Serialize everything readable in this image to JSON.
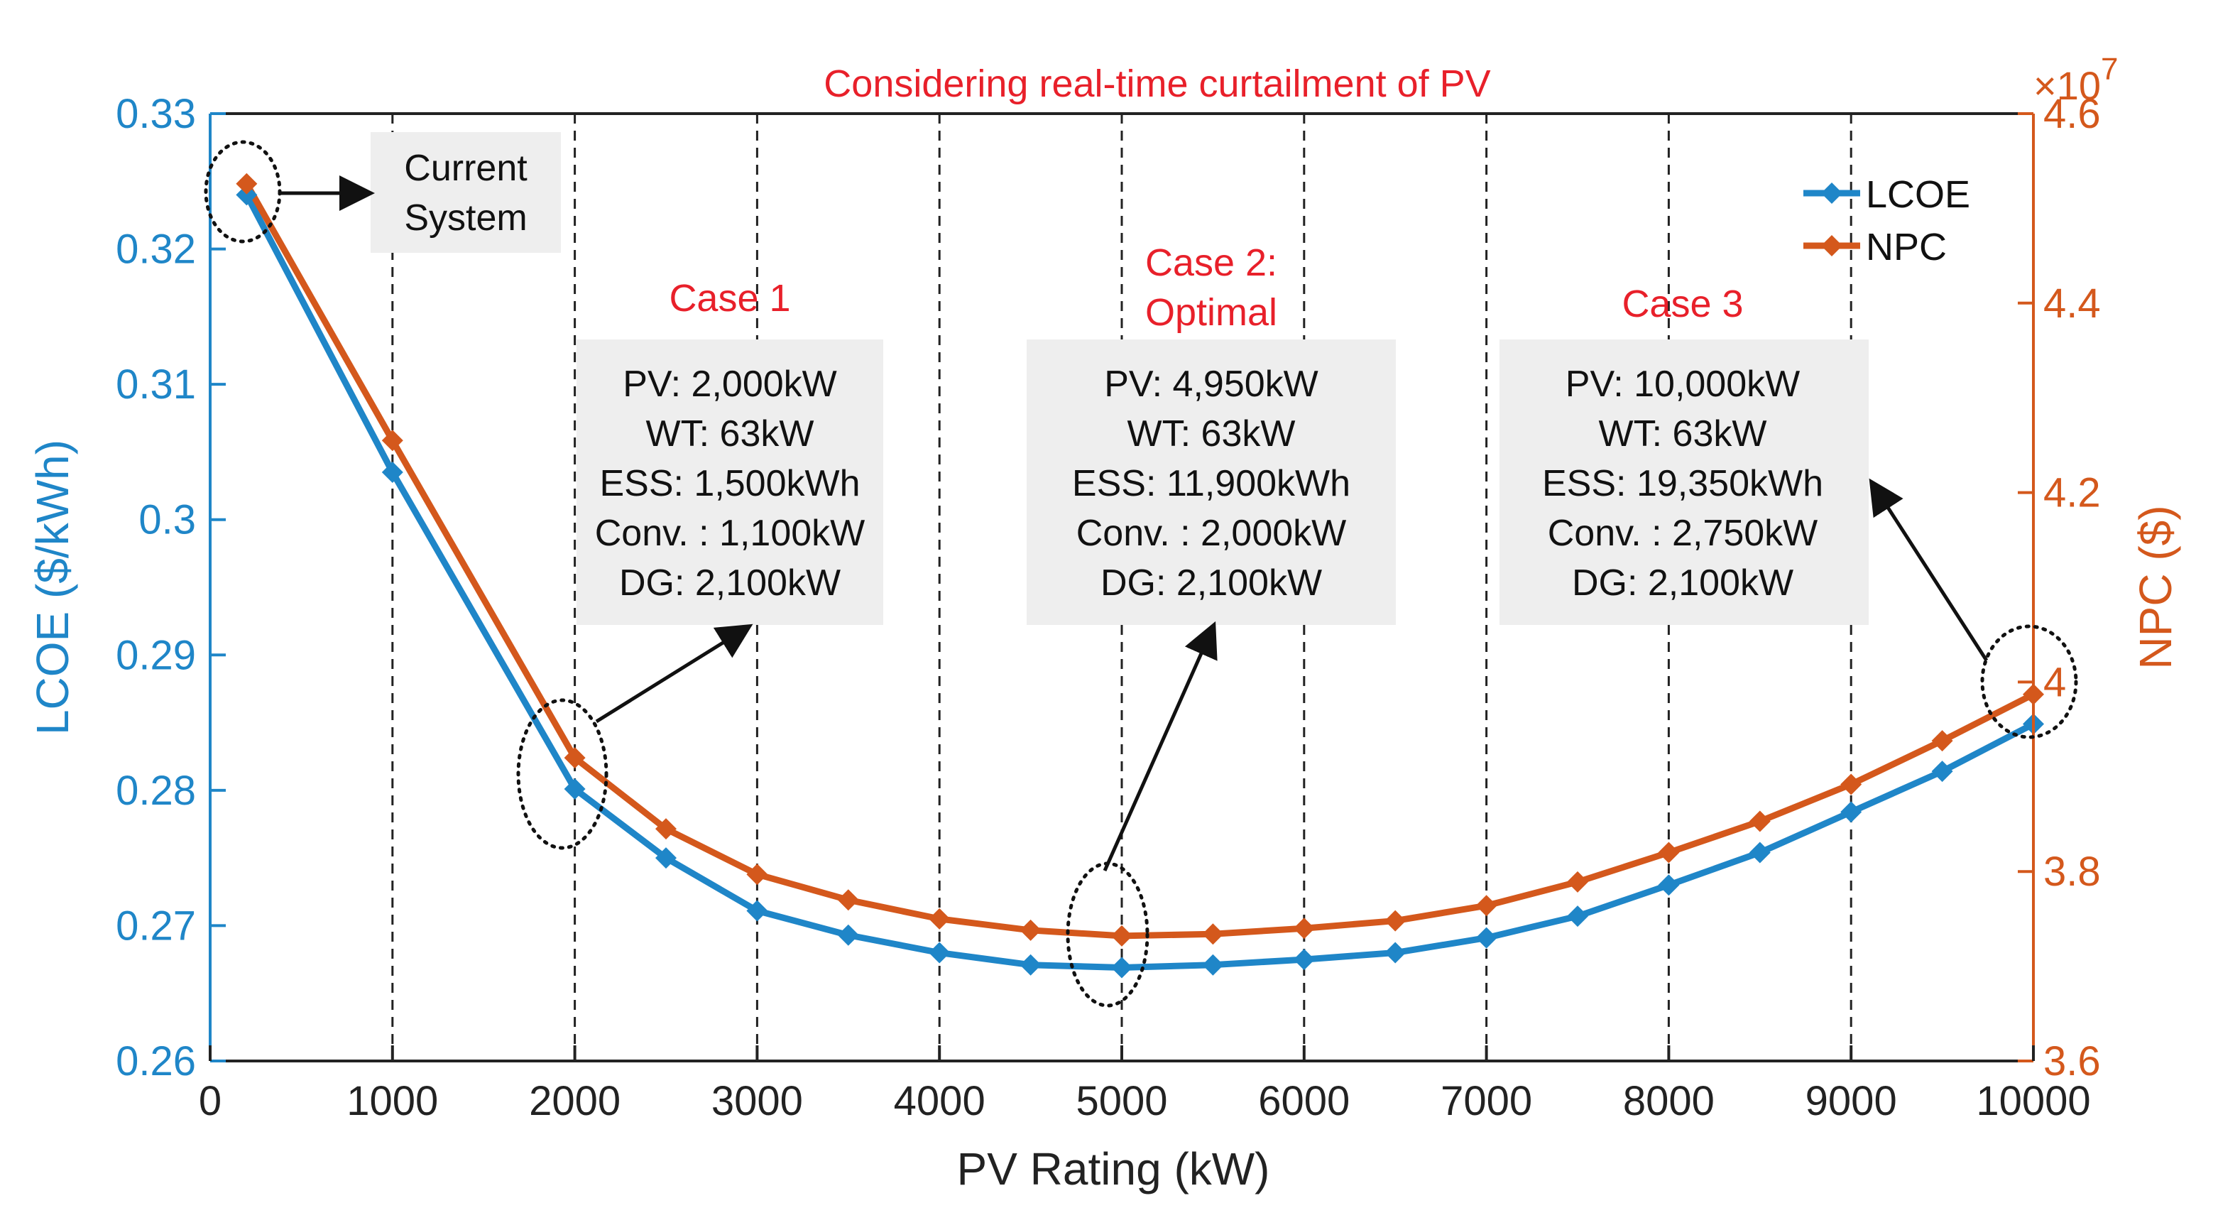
{
  "chart_data": {
    "type": "line",
    "title": "Considering real-time curtailment of PV",
    "xlabel": "PV Rating (kW)",
    "ylabel": "LCOE ($/kWh)",
    "y2label": "NPC ($)",
    "xlim": [
      0,
      10000
    ],
    "ylim": [
      0.26,
      0.33
    ],
    "y2lim": [
      3.6,
      4.6
    ],
    "y2_exponent": "×10^7",
    "y2_exponent_base": "×10",
    "y2_exponent_power": "7",
    "xticks": [
      0,
      1000,
      2000,
      3000,
      4000,
      5000,
      6000,
      7000,
      8000,
      9000,
      10000
    ],
    "xtick_labels": [
      "0",
      "1000",
      "2000",
      "3000",
      "4000",
      "5000",
      "6000",
      "7000",
      "8000",
      "9000",
      "10000"
    ],
    "yticks": [
      0.26,
      0.27,
      0.28,
      0.29,
      0.3,
      0.31,
      0.32,
      0.33
    ],
    "ytick_labels": [
      "0.26",
      "0.27",
      "0.28",
      "0.29",
      "0.3",
      "0.31",
      "0.32",
      "0.33"
    ],
    "y2ticks": [
      3.6,
      3.8,
      4.0,
      4.2,
      4.4,
      4.6
    ],
    "y2tick_labels": [
      "3.6",
      "3.8",
      "4",
      "4.2",
      "4.4",
      "4.6"
    ],
    "vertical_dashed_lines": [
      1000,
      2000,
      3000,
      4000,
      5000,
      6000,
      7000,
      8000,
      9000
    ],
    "legend_placement": "top-right",
    "x": [
      200,
      1000,
      2000,
      2500,
      3000,
      3500,
      4000,
      4500,
      5000,
      5500,
      6000,
      6500,
      7000,
      7500,
      8000,
      8500,
      9000,
      9500,
      10000
    ],
    "series": [
      {
        "name": "LCOE",
        "axis": "left",
        "color": "#1f86c8",
        "values": [
          0.324,
          0.3035,
          0.2801,
          0.275,
          0.2711,
          0.2693,
          0.268,
          0.2671,
          0.2669,
          0.2671,
          0.2675,
          0.268,
          0.2691,
          0.2707,
          0.273,
          0.2754,
          0.2784,
          0.2814,
          0.2849
        ]
      },
      {
        "name": "NPC",
        "axis": "right",
        "color": "#d4581c",
        "values": [
          4.526,
          4.255,
          3.92,
          3.845,
          3.797,
          3.77,
          3.75,
          3.738,
          3.732,
          3.734,
          3.74,
          3.748,
          3.764,
          3.789,
          3.82,
          3.853,
          3.892,
          3.938,
          3.987
        ]
      }
    ],
    "annotations": {
      "current_system": {
        "lines": [
          "Current",
          "System"
        ]
      },
      "cases": [
        {
          "label_lines": [
            "Case 1"
          ],
          "box_lines": [
            "PV: 2,000kW",
            "WT: 63kW",
            "ESS: 1,500kWh",
            "Conv. : 1,100kW",
            "DG: 2,100kW"
          ]
        },
        {
          "label_lines": [
            "Case 2:",
            "Optimal"
          ],
          "box_lines": [
            "PV: 4,950kW",
            "WT: 63kW",
            "ESS: 11,900kWh",
            "Conv. : 2,000kW",
            "DG: 2,100kW"
          ]
        },
        {
          "label_lines": [
            "Case 3"
          ],
          "box_lines": [
            "PV: 10,000kW",
            "WT: 63kW",
            "ESS: 19,350kWh",
            "Conv. : 2,750kW",
            "DG: 2,100kW"
          ]
        }
      ]
    }
  }
}
